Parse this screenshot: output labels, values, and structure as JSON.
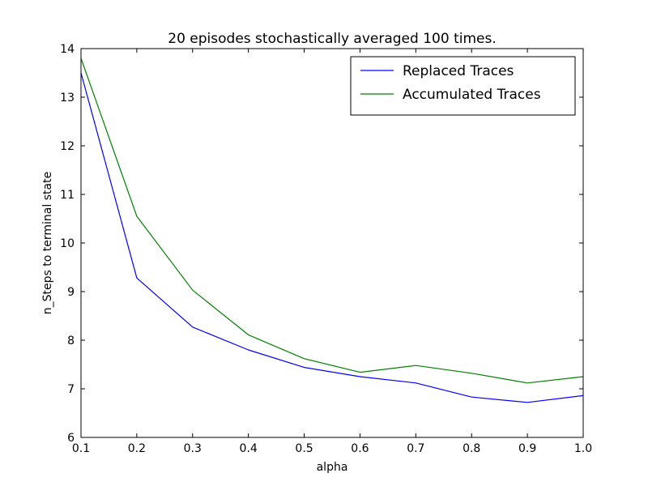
{
  "chart_data": {
    "type": "line",
    "title": "20 episodes stochastically averaged 100 times.",
    "xlabel": "alpha",
    "ylabel": "n_Steps to terminal state",
    "xlim": [
      0.1,
      1.0
    ],
    "ylim": [
      6,
      14
    ],
    "x": [
      0.1,
      0.2,
      0.3,
      0.4,
      0.5,
      0.6,
      0.7,
      0.8,
      0.9,
      1.0
    ],
    "x_tick_labels": [
      "0.1",
      "0.2",
      "0.3",
      "0.4",
      "0.5",
      "0.6",
      "0.7",
      "0.8",
      "0.9",
      "1.0"
    ],
    "y_ticks": [
      6,
      7,
      8,
      9,
      10,
      11,
      12,
      13,
      14
    ],
    "y_tick_labels": [
      "6",
      "7",
      "8",
      "9",
      "10",
      "11",
      "12",
      "13",
      "14"
    ],
    "grid": false,
    "legend_position": "top-right",
    "series": [
      {
        "name": "Replaced Traces",
        "color": "#0000ff",
        "values": [
          13.5,
          9.28,
          8.27,
          7.8,
          7.44,
          7.25,
          7.12,
          6.83,
          6.72,
          6.86
        ]
      },
      {
        "name": "Accumulated Traces",
        "color": "#008000",
        "values": [
          13.8,
          10.55,
          9.03,
          8.11,
          7.62,
          7.34,
          7.48,
          7.32,
          7.12,
          7.25
        ]
      }
    ]
  }
}
